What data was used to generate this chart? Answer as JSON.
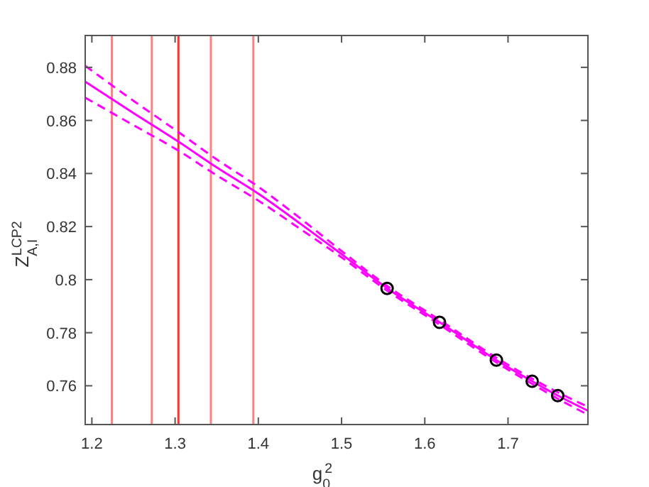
{
  "chart_data": {
    "type": "line",
    "xlabel": "g$_{0}$$^{2}$",
    "ylabel": "Z$_{A,I}$$^{LCP2}$",
    "xlim": [
      1.192,
      1.796
    ],
    "ylim": [
      0.7454,
      0.892
    ],
    "xticks": [
      1.2,
      1.3,
      1.4,
      1.5,
      1.6,
      1.7
    ],
    "yticks": [
      0.76,
      0.78,
      0.8,
      0.82,
      0.84,
      0.86,
      0.88
    ],
    "grid": false,
    "series": [
      {
        "color": "#ff00ff",
        "x": [
          1.192,
          1.25,
          1.3036,
          1.35,
          1.4,
          1.45,
          1.5,
          1.555,
          1.618,
          1.686,
          1.729,
          1.76,
          1.796
        ],
        "values": [
          0.8746,
          0.8628,
          0.8521,
          0.8423,
          0.8324,
          0.8212,
          0.8096,
          0.7967,
          0.7839,
          0.7697,
          0.7617,
          0.7563,
          0.7506
        ]
      },
      {
        "color": "#ff00ff",
        "line_style": "dashed",
        "x": [
          1.192,
          1.25,
          1.3036,
          1.35,
          1.4,
          1.45,
          1.5,
          1.555,
          1.618,
          1.686,
          1.729,
          1.76,
          1.796
        ],
        "values": [
          0.8686,
          0.8582,
          0.8487,
          0.8393,
          0.8298,
          0.8192,
          0.8084,
          0.7958,
          0.783,
          0.7688,
          0.7607,
          0.7551,
          0.7491
        ]
      },
      {
        "color": "#ff00ff",
        "line_style": "dashed",
        "x": [
          1.192,
          1.25,
          1.3036,
          1.35,
          1.4,
          1.45,
          1.5,
          1.555,
          1.618,
          1.686,
          1.729,
          1.76,
          1.796
        ],
        "values": [
          0.8806,
          0.8674,
          0.8557,
          0.8453,
          0.835,
          0.8232,
          0.8108,
          0.7976,
          0.7848,
          0.7706,
          0.7627,
          0.7575,
          0.7521
        ]
      },
      {
        "type": "scatter",
        "color": "#000000",
        "marker": "circle",
        "x": [
          1.5547,
          1.6177,
          1.686,
          1.729,
          1.7597
        ],
        "values": [
          0.7967,
          0.7839,
          0.7697,
          0.7617,
          0.7563
        ]
      }
    ],
    "ref_lines": [
      {
        "axis": "x",
        "value": 1.224,
        "color": "#ff8080"
      },
      {
        "axis": "x",
        "value": 1.272,
        "color": "#ff8080"
      },
      {
        "axis": "x",
        "value": 1.304,
        "color": "#ff3030"
      },
      {
        "axis": "x",
        "value": 1.343,
        "color": "#ff8080"
      },
      {
        "axis": "x",
        "value": 1.394,
        "color": "#ff8080"
      }
    ]
  }
}
